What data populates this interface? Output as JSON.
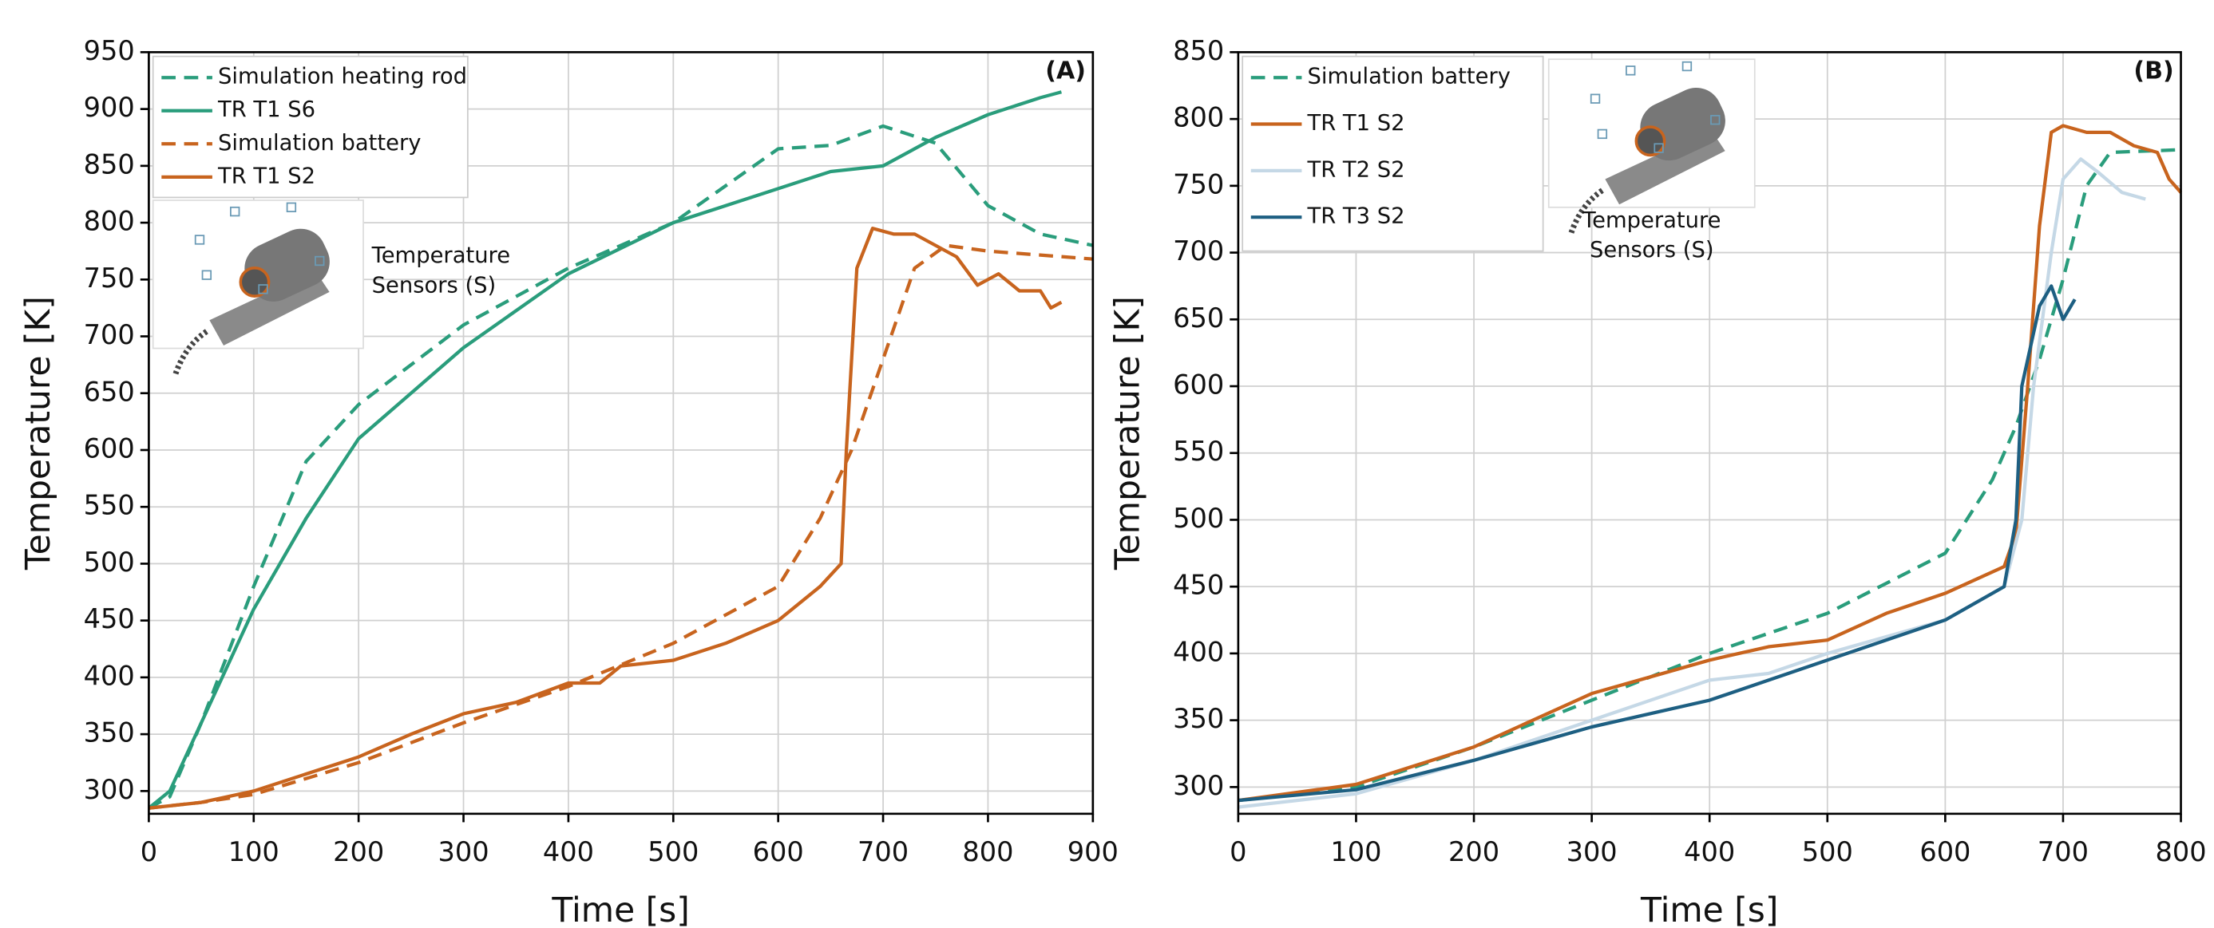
{
  "chart_data": [
    {
      "type": "line",
      "panel_label": "(A)",
      "xlabel": "Time [s]",
      "ylabel": "Temperature [K]",
      "xlim": [
        0,
        900
      ],
      "xticks": [
        0,
        100,
        200,
        300,
        400,
        500,
        600,
        700,
        800,
        900
      ],
      "ylim": [
        280,
        950
      ],
      "yticks": [
        300,
        350,
        400,
        450,
        500,
        550,
        600,
        650,
        700,
        750,
        800,
        850,
        900,
        950
      ],
      "grid": true,
      "legend": "upper left",
      "inset_label": [
        "Temperature",
        "Sensors (S)"
      ],
      "series": [
        {
          "name": "Simulation heating rod",
          "color": "#2a9d7c",
          "dashed": true,
          "x": [
            0,
            20,
            50,
            100,
            150,
            200,
            300,
            400,
            500,
            600,
            650,
            700,
            750,
            800,
            850,
            900
          ],
          "values": [
            285,
            295,
            360,
            480,
            590,
            640,
            710,
            760,
            800,
            865,
            868,
            885,
            870,
            815,
            790,
            780
          ]
        },
        {
          "name": "TR T1 S6",
          "color": "#2a9d7c",
          "dashed": false,
          "x": [
            0,
            20,
            50,
            100,
            150,
            200,
            300,
            400,
            500,
            600,
            650,
            700,
            750,
            800,
            850,
            870
          ],
          "values": [
            285,
            300,
            360,
            460,
            540,
            610,
            690,
            755,
            800,
            830,
            845,
            850,
            875,
            895,
            910,
            915
          ]
        },
        {
          "name": "Simulation battery",
          "color": "#c8641e",
          "dashed": true,
          "x": [
            0,
            50,
            100,
            200,
            300,
            400,
            500,
            600,
            640,
            670,
            700,
            730,
            760,
            800,
            900
          ],
          "values": [
            285,
            290,
            297,
            325,
            360,
            392,
            430,
            480,
            540,
            600,
            680,
            760,
            780,
            775,
            768
          ]
        },
        {
          "name": "TR T1 S2",
          "color": "#c8641e",
          "dashed": false,
          "x": [
            0,
            50,
            100,
            200,
            250,
            300,
            350,
            400,
            430,
            450,
            500,
            550,
            600,
            640,
            660,
            665,
            675,
            690,
            710,
            730,
            750,
            770,
            790,
            810,
            830,
            850,
            860,
            870
          ],
          "values": [
            285,
            290,
            300,
            330,
            350,
            368,
            378,
            395,
            395,
            410,
            415,
            430,
            450,
            480,
            500,
            600,
            760,
            795,
            790,
            790,
            780,
            770,
            745,
            755,
            740,
            740,
            725,
            730
          ]
        }
      ]
    },
    {
      "type": "line",
      "panel_label": "(B)",
      "xlabel": "Time [s]",
      "ylabel": "Temperature [K]",
      "xlim": [
        0,
        800
      ],
      "xticks": [
        0,
        100,
        200,
        300,
        400,
        500,
        600,
        700,
        800
      ],
      "ylim": [
        280,
        850
      ],
      "yticks": [
        300,
        350,
        400,
        450,
        500,
        550,
        600,
        650,
        700,
        750,
        800,
        850
      ],
      "grid": true,
      "legend": "upper left",
      "inset_label": [
        "Temperature",
        "Sensors (S)"
      ],
      "series": [
        {
          "name": "Simulation battery",
          "color": "#2a9d7c",
          "dashed": true,
          "x": [
            0,
            100,
            200,
            300,
            400,
            500,
            600,
            640,
            660,
            680,
            700,
            720,
            740,
            800
          ],
          "values": [
            290,
            300,
            330,
            365,
            400,
            430,
            475,
            530,
            570,
            620,
            680,
            750,
            775,
            777
          ]
        },
        {
          "name": "TR T1 S2",
          "color": "#c8641e",
          "dashed": false,
          "x": [
            0,
            100,
            200,
            300,
            400,
            450,
            500,
            550,
            600,
            650,
            660,
            670,
            680,
            690,
            700,
            720,
            740,
            760,
            780,
            790,
            800
          ],
          "values": [
            290,
            302,
            330,
            370,
            395,
            405,
            410,
            430,
            445,
            465,
            490,
            600,
            720,
            790,
            795,
            790,
            790,
            780,
            775,
            755,
            745
          ]
        },
        {
          "name": "TR T2 S2",
          "color": "#c5d8e6",
          "dashed": false,
          "x": [
            0,
            100,
            200,
            300,
            400,
            450,
            500,
            600,
            650,
            665,
            675,
            690,
            700,
            715,
            730,
            750,
            770
          ],
          "values": [
            285,
            295,
            320,
            350,
            380,
            385,
            400,
            425,
            450,
            500,
            600,
            700,
            755,
            770,
            760,
            745,
            740
          ]
        },
        {
          "name": "TR T3 S2",
          "color": "#1d5f82",
          "dashed": false,
          "x": [
            0,
            100,
            200,
            300,
            400,
            500,
            600,
            650,
            660,
            665,
            680,
            690,
            700,
            710
          ],
          "values": [
            290,
            298,
            320,
            345,
            365,
            395,
            425,
            450,
            500,
            600,
            660,
            675,
            650,
            665
          ]
        }
      ]
    }
  ]
}
